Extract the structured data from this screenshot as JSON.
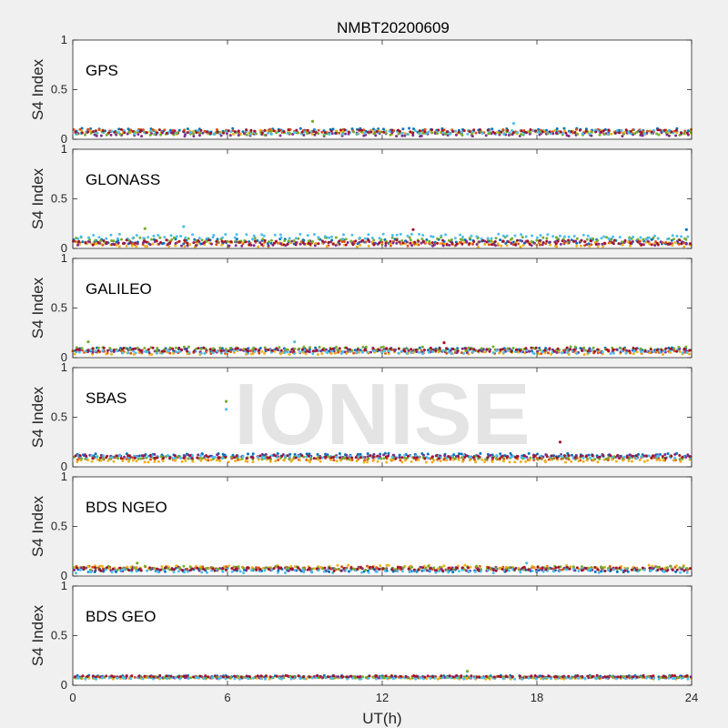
{
  "figure": {
    "title": "NMBT20200609",
    "watermark": "IONISE",
    "xlabel": "UT(h)"
  },
  "palette": [
    "#0072BD",
    "#D95319",
    "#EDB120",
    "#7E2F8E",
    "#77AC30",
    "#4DBEEE",
    "#A2142F"
  ],
  "chart_data": [
    {
      "type": "scatter",
      "panel_label": "GPS",
      "ylabel": "S4 Index",
      "xlim": [
        0,
        24
      ],
      "ylim": [
        0,
        1
      ],
      "xticks": [
        0,
        6,
        12,
        18,
        24
      ],
      "yticks": [
        0,
        0.5,
        1
      ],
      "ytick_labels": [
        "0",
        "0.5",
        "1"
      ],
      "grid": false,
      "series_baselines": [
        0.09,
        0.08,
        0.07,
        0.05,
        0.06,
        0.07,
        0.08
      ],
      "noise": 0.02,
      "spikes": [
        [
          9.3,
          0.18
        ],
        [
          17.1,
          0.16
        ]
      ]
    },
    {
      "type": "scatter",
      "panel_label": "GLONASS",
      "ylabel": "S4 Index",
      "xlim": [
        0,
        24
      ],
      "ylim": [
        0,
        1
      ],
      "xticks": [
        0,
        6,
        12,
        18,
        24
      ],
      "yticks": [
        0,
        0.5,
        1
      ],
      "ytick_labels": [
        "0",
        "0.5",
        "1"
      ],
      "grid": false,
      "series_baselines": [
        0.07,
        0.05,
        0.04,
        0.05,
        0.09,
        0.12,
        0.06
      ],
      "noise": 0.025,
      "spikes": [
        [
          2.8,
          0.2
        ],
        [
          4.3,
          0.22
        ],
        [
          13.2,
          0.19
        ],
        [
          23.8,
          0.19
        ]
      ]
    },
    {
      "type": "scatter",
      "panel_label": "GALILEO",
      "ylabel": "S4 Index",
      "xlim": [
        0,
        24
      ],
      "ylim": [
        0,
        1
      ],
      "xticks": [
        0,
        6,
        12,
        18,
        24
      ],
      "yticks": [
        0,
        0.5,
        1
      ],
      "ytick_labels": [
        "0",
        "0.5",
        "1"
      ],
      "grid": false,
      "series_baselines": [
        0.08,
        0.06,
        0.05,
        0.07,
        0.09,
        0.06,
        0.08
      ],
      "noise": 0.02,
      "spikes": [
        [
          0.6,
          0.16
        ],
        [
          8.6,
          0.16
        ],
        [
          14.4,
          0.15
        ]
      ]
    },
    {
      "type": "scatter",
      "panel_label": "SBAS",
      "ylabel": "S4 Index",
      "xlim": [
        0,
        24
      ],
      "ylim": [
        0,
        1
      ],
      "xticks": [
        0,
        6,
        12,
        18,
        24
      ],
      "yticks": [
        0,
        0.5,
        1
      ],
      "ytick_labels": [
        "0",
        "0.5",
        "1"
      ],
      "grid": false,
      "series_baselines": [
        0.12,
        0.08,
        0.06,
        0.11,
        0.09,
        0.1,
        0.1
      ],
      "noise": 0.015,
      "spikes": [
        [
          5.95,
          0.66
        ],
        [
          5.95,
          0.58
        ],
        [
          18.9,
          0.25
        ]
      ]
    },
    {
      "type": "scatter",
      "panel_label": "BDS NGEO",
      "ylabel": "S4 Index",
      "xlim": [
        0,
        24
      ],
      "ylim": [
        0,
        1
      ],
      "xticks": [
        0,
        6,
        12,
        18,
        24
      ],
      "yticks": [
        0,
        0.5,
        1
      ],
      "ytick_labels": [
        "0",
        "0.5",
        "1"
      ],
      "grid": false,
      "series_baselines": [
        0.06,
        0.08,
        0.09,
        0.07,
        0.08,
        0.05,
        0.07
      ],
      "noise": 0.02,
      "spikes": [
        [
          2.5,
          0.13
        ],
        [
          17.6,
          0.13
        ]
      ]
    },
    {
      "type": "scatter",
      "panel_label": "BDS GEO",
      "ylabel": "S4 Index",
      "xlim": [
        0,
        24
      ],
      "ylim": [
        0,
        1
      ],
      "xticks": [
        0,
        6,
        12,
        18,
        24
      ],
      "yticks": [
        0,
        0.5,
        1
      ],
      "ytick_labels": [
        "0",
        "0.5",
        "1"
      ],
      "grid": false,
      "series_baselines": [
        0.09,
        0.08,
        0.07,
        0.08,
        0.08,
        0.07,
        0.09
      ],
      "noise": 0.008,
      "spikes": [
        [
          15.3,
          0.14
        ]
      ]
    }
  ]
}
